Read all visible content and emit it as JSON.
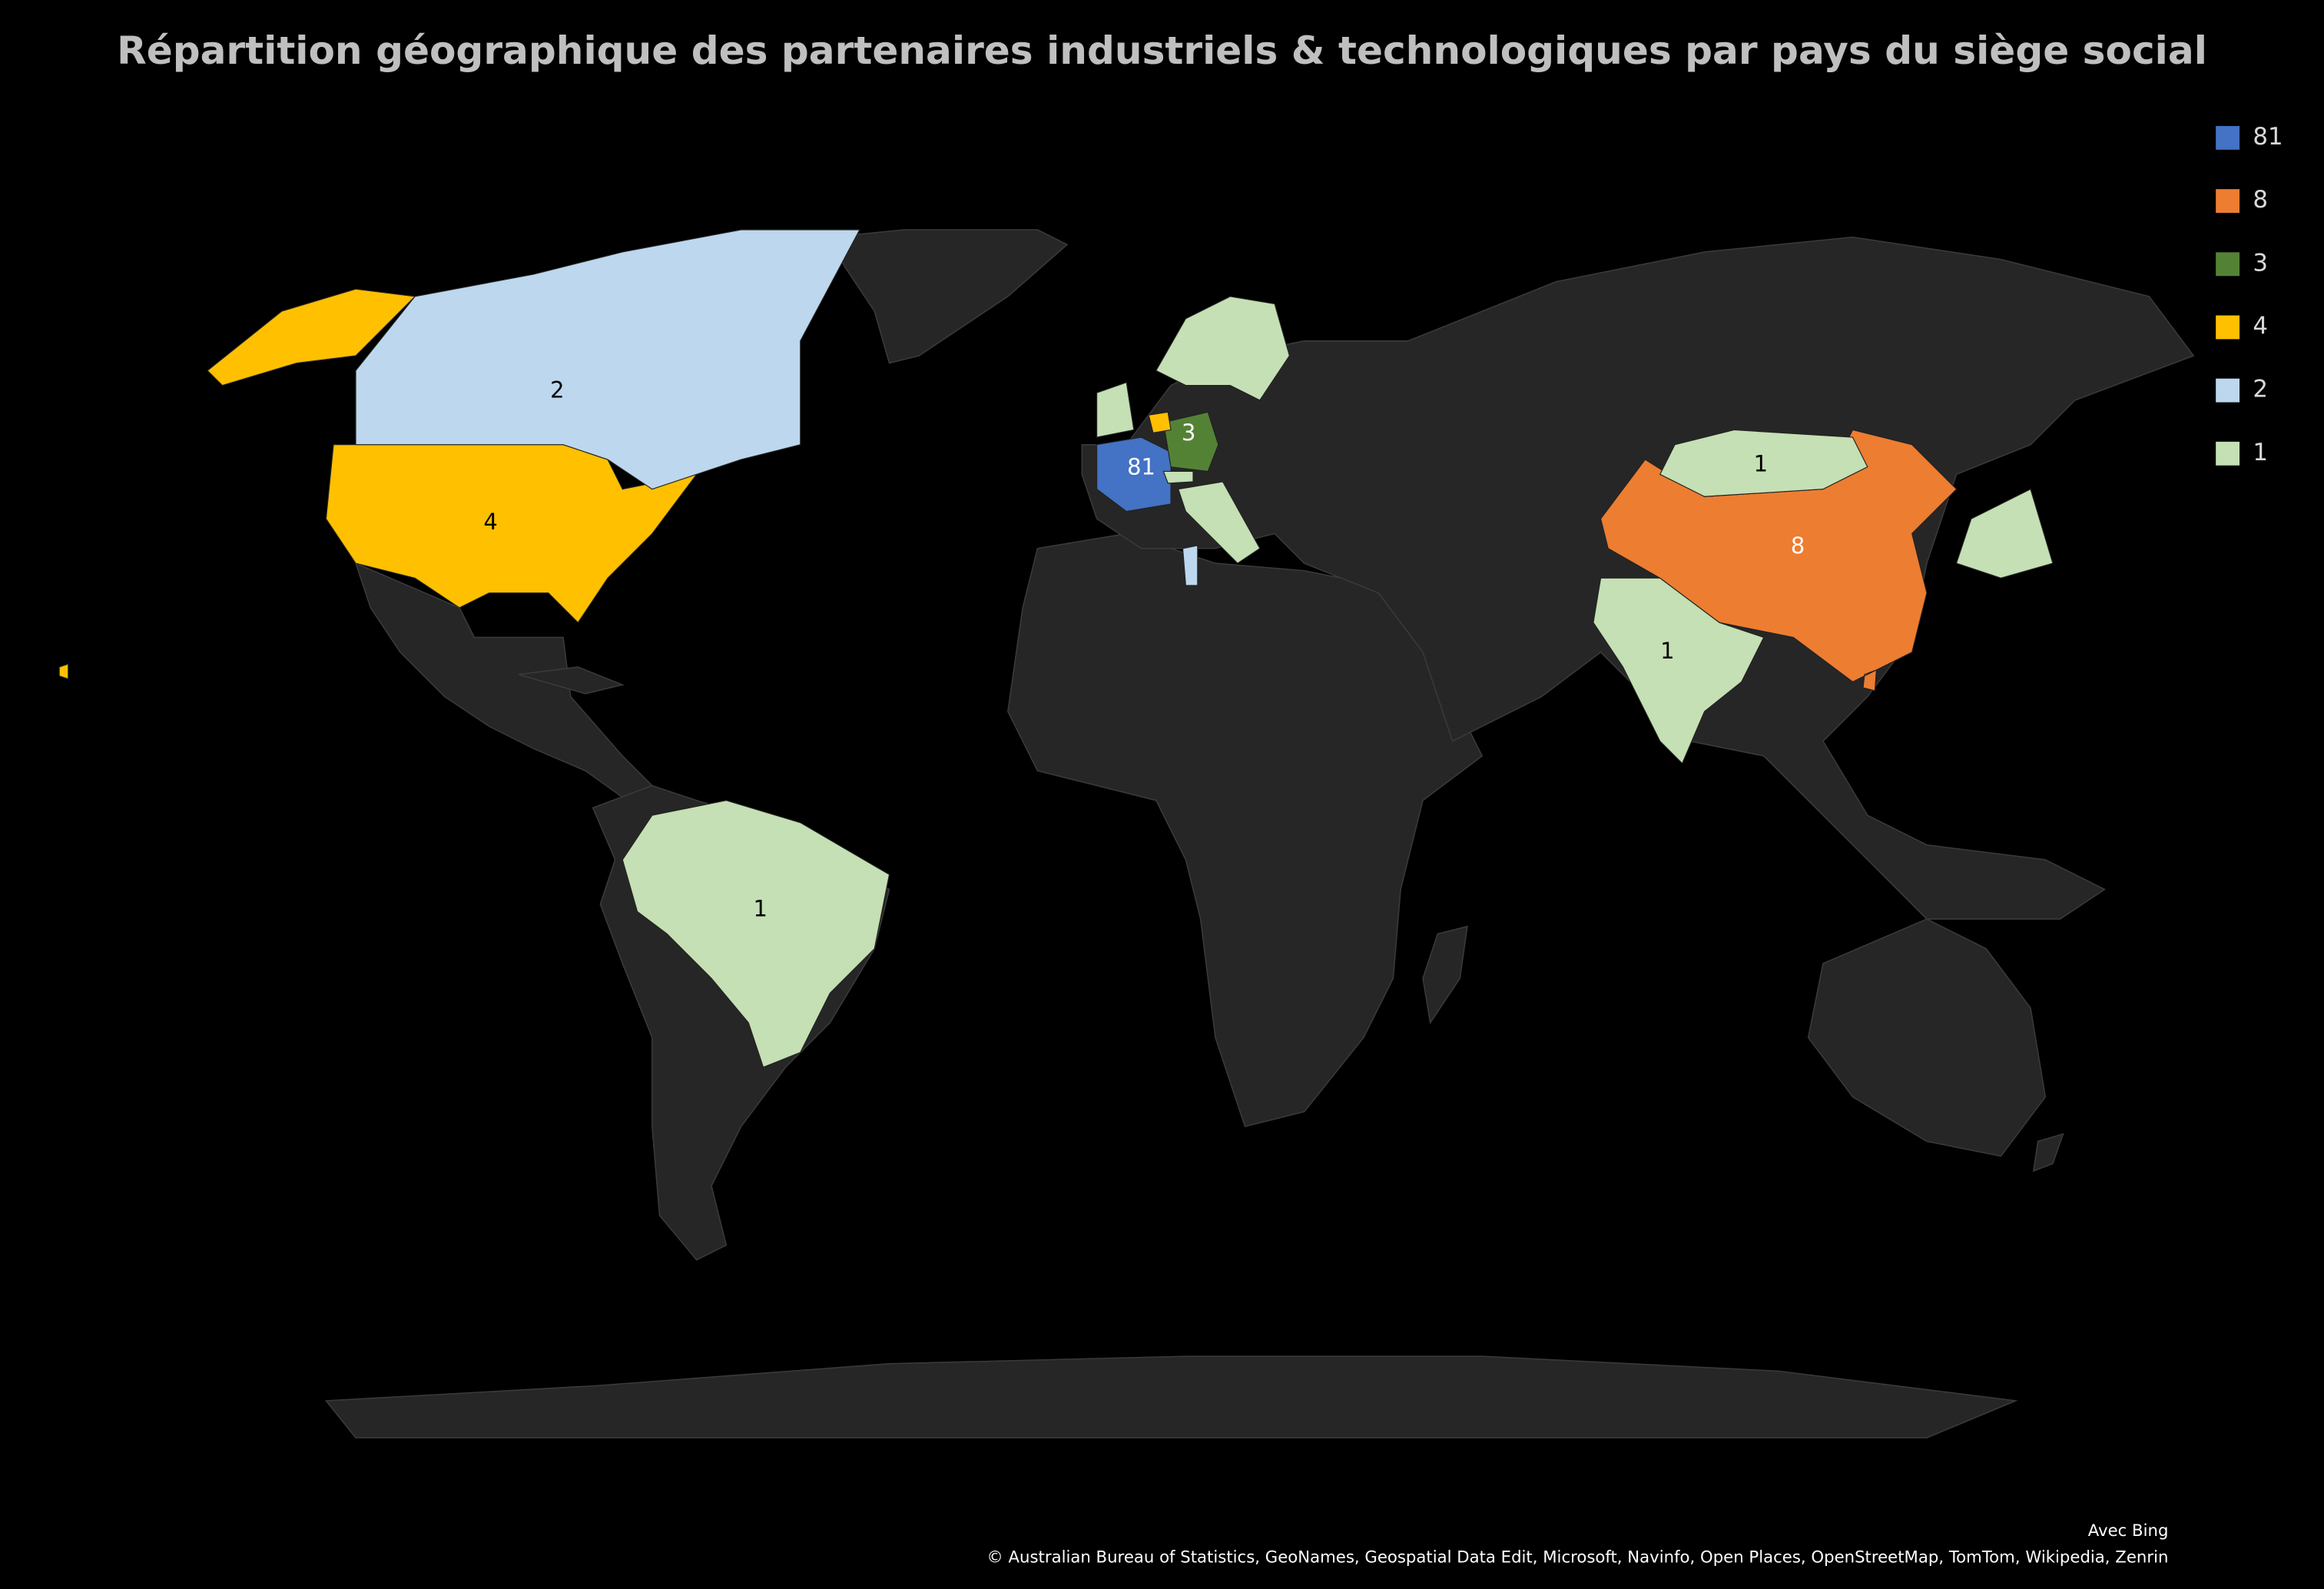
{
  "chart_data": {
    "type": "map",
    "title": "Répartition géographique des partenaires industriels & technologiques par pays du siège social",
    "legend": [
      {
        "value": 81,
        "color": "#4472c4"
      },
      {
        "value": 8,
        "color": "#ed7d31"
      },
      {
        "value": 3,
        "color": "#548235"
      },
      {
        "value": 4,
        "color": "#ffc000"
      },
      {
        "value": 2,
        "color": "#bdd7ee"
      },
      {
        "value": 1,
        "color": "#c5e0b4"
      }
    ],
    "regions": [
      {
        "value": 81
      },
      {
        "value": 8
      },
      {
        "value": 3
      },
      {
        "value": 4
      },
      {
        "value": 2
      },
      {
        "value": 1
      },
      {
        "value": 1
      },
      {
        "value": 1
      },
      {
        "value": 4
      },
      {
        "value": 2
      },
      {
        "value": 1
      },
      {
        "value": 1
      },
      {
        "value": 1
      },
      {
        "value": 1
      },
      {
        "value": 1
      }
    ],
    "attribution": [
      "Avec Bing",
      "© Australian Bureau of Statistics, GeoNames, Geospatial Data Edit, Microsoft, Navinfo, Open Places, OpenStreetMap, TomTom, Wikipedia, Zenrin"
    ]
  }
}
